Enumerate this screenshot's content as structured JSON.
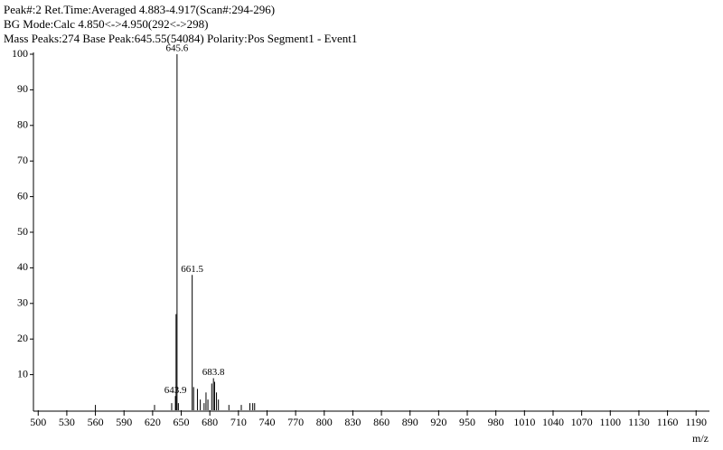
{
  "chart_data": {
    "type": "spectrum",
    "header": [
      "Peak#:2   Ret.Time:Averaged 4.883-4.917(Scan#:294-296)",
      "BG Mode:Calc 4.850<->4.950(292<->298)",
      "Mass Peaks:274   Base Peak:645.55(54084)  Polarity:Pos  Segment1 - Event1"
    ],
    "xlabel": "m/z",
    "x": [
      560,
      622,
      640,
      643.9,
      644.6,
      645.6,
      647,
      661.5,
      663,
      667,
      670,
      674,
      676,
      678,
      682,
      683.8,
      685,
      687,
      689,
      700,
      713,
      722,
      725,
      727
    ],
    "values": [
      1.5,
      1.5,
      2,
      4,
      27,
      100,
      2,
      38,
      6.5,
      6,
      3,
      2,
      5,
      3,
      7.5,
      9,
      8,
      5,
      3,
      1.5,
      1.5,
      2,
      2,
      2
    ],
    "annotations": [
      {
        "x": 643.9,
        "y": 4,
        "label": "643.9"
      },
      {
        "x": 645.6,
        "y": 100,
        "label": "645.6"
      },
      {
        "x": 661.5,
        "y": 38,
        "label": "661.5"
      },
      {
        "x": 683.8,
        "y": 9,
        "label": "683.8"
      }
    ],
    "color": "#000000",
    "xlim": [
      495,
      1204
    ],
    "ylim": [
      0,
      100
    ],
    "xticks": [
      500,
      530,
      560,
      590,
      620,
      650,
      680,
      710,
      740,
      770,
      800,
      830,
      860,
      890,
      920,
      950,
      980,
      1010,
      1040,
      1070,
      1100,
      1130,
      1160,
      1190
    ],
    "yticks": [
      10,
      20,
      30,
      40,
      50,
      60,
      70,
      80,
      90,
      100
    ]
  }
}
